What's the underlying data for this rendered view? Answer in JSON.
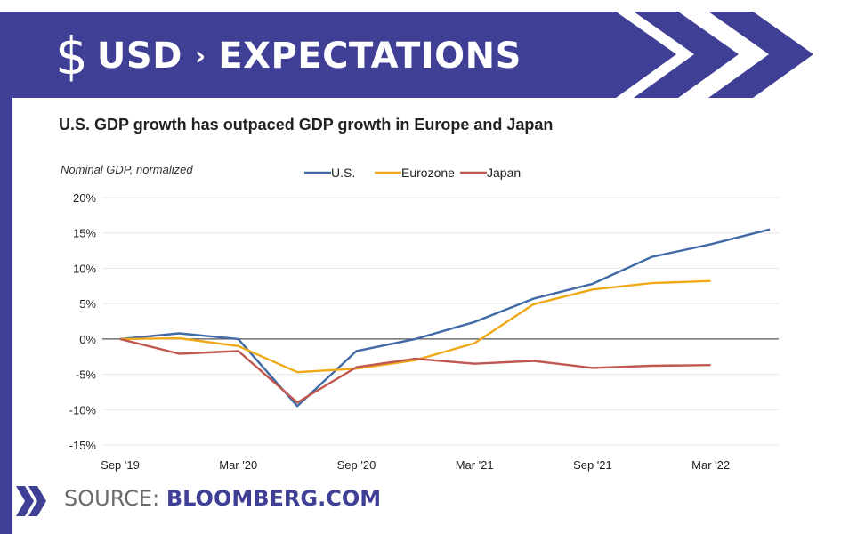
{
  "banner": {
    "symbol": "$",
    "left": "USD",
    "separator": "›",
    "right": "EXPECTATIONS"
  },
  "source": {
    "label": "SOURCE:",
    "name": "BLOOMBERG.COM"
  },
  "colors": {
    "banner": "#3f3f96",
    "us": "#3f6aa6",
    "eurozone": "#f0a817",
    "japan": "#c0584f"
  },
  "chart_data": {
    "type": "line",
    "title": "U.S. GDP growth has outpaced GDP growth in Europe and Japan",
    "ylabel": "Nominal GDP, normalized",
    "xlabel": "",
    "x": [
      "Sep '19",
      "Dec '19",
      "Mar '20",
      "Jun '20",
      "Sep '20",
      "Dec '20",
      "Mar '21",
      "Jun '21",
      "Sep '21",
      "Dec '21",
      "Mar '22",
      "Jun '22"
    ],
    "xticks": [
      "Sep '19",
      "Mar '20",
      "Sep '20",
      "Mar '21",
      "Sep '21",
      "Mar '22"
    ],
    "yticks": [
      "20%",
      "15%",
      "10%",
      "5%",
      "0%",
      "-5%",
      "-10%",
      "-15%"
    ],
    "ylim": [
      -15,
      20
    ],
    "legend_position": "top-center",
    "grid": true,
    "series": [
      {
        "name": "U.S.",
        "values": [
          0,
          0.8,
          0,
          -9.5,
          -1.7,
          0,
          2.4,
          5.7,
          7.8,
          11.6,
          13.4,
          15.5
        ]
      },
      {
        "name": "Eurozone",
        "values": [
          0,
          0.1,
          -1,
          -4.7,
          -4.2,
          -3,
          -0.6,
          4.9,
          7,
          7.9,
          8.2,
          null
        ]
      },
      {
        "name": "Japan",
        "values": [
          0,
          -2.1,
          -1.7,
          -9,
          -4,
          -2.8,
          -3.5,
          -3.1,
          -4.1,
          -3.8,
          -3.7,
          null
        ]
      }
    ]
  }
}
